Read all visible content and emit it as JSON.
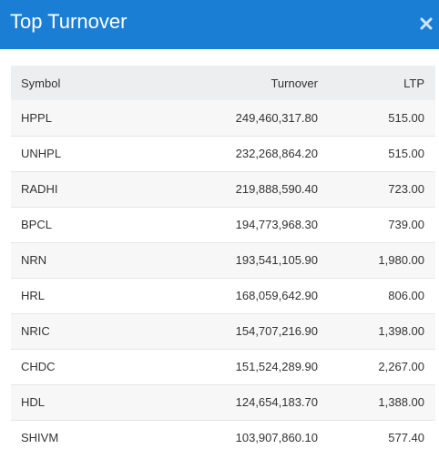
{
  "modal": {
    "title": "Top Turnover",
    "close_icon": "close-icon"
  },
  "table": {
    "headers": {
      "symbol": "Symbol",
      "turnover": "Turnover",
      "ltp": "LTP"
    },
    "rows": [
      {
        "symbol": "HPPL",
        "turnover": "249,460,317.80",
        "ltp": "515.00"
      },
      {
        "symbol": "UNHPL",
        "turnover": "232,268,864.20",
        "ltp": "515.00"
      },
      {
        "symbol": "RADHI",
        "turnover": "219,888,590.40",
        "ltp": "723.00"
      },
      {
        "symbol": "BPCL",
        "turnover": "194,773,968.30",
        "ltp": "739.00"
      },
      {
        "symbol": "NRN",
        "turnover": "193,541,105.90",
        "ltp": "1,980.00"
      },
      {
        "symbol": "HRL",
        "turnover": "168,059,642.90",
        "ltp": "806.00"
      },
      {
        "symbol": "NRIC",
        "turnover": "154,707,216.90",
        "ltp": "1,398.00"
      },
      {
        "symbol": "CHDC",
        "turnover": "151,524,289.90",
        "ltp": "2,267.00"
      },
      {
        "symbol": "HDL",
        "turnover": "124,654,183.70",
        "ltp": "1,388.00"
      },
      {
        "symbol": "SHIVM",
        "turnover": "103,907,860.10",
        "ltp": "577.40"
      }
    ]
  },
  "colors": {
    "header_bg": "#1a7fd4",
    "table_head_bg": "#eceeef",
    "row_alt_bg": "#f7f7f7"
  }
}
